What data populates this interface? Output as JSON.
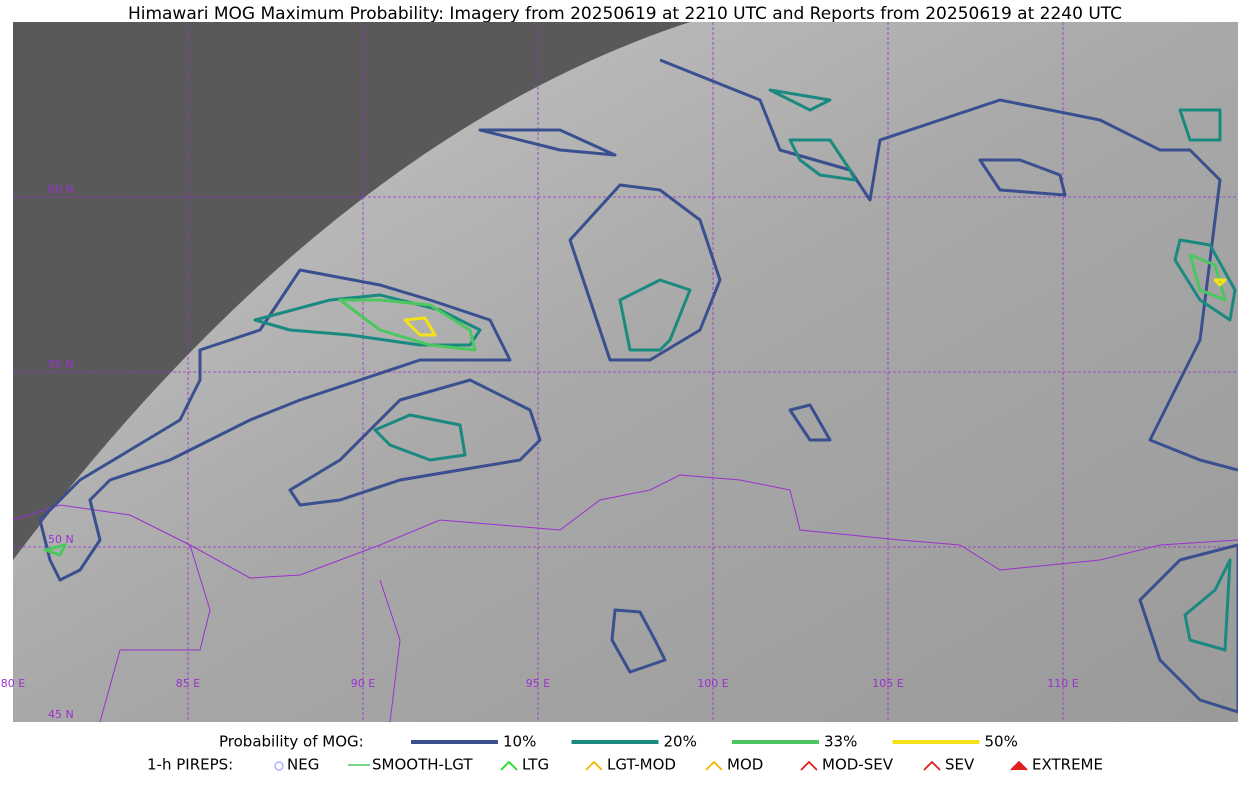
{
  "title": "Himawari MOG Maximum Probability: Imagery from 20250619 at 2210 UTC and Reports from 20250619 at 2240 UTC",
  "map": {
    "lat_labels": [
      "60 N",
      "55 N",
      "50 N",
      "45 N"
    ],
    "lon_labels": [
      "80 E",
      "85 E",
      "90 E",
      "95 E",
      "100 E",
      "105 E",
      "110 E"
    ]
  },
  "legend": {
    "probability": {
      "label": "Probability of MOG:",
      "items": [
        {
          "name": "10%",
          "color": "#3a4f8f"
        },
        {
          "name": "20%",
          "color": "#1a8a80"
        },
        {
          "name": "33%",
          "color": "#4cc760"
        },
        {
          "name": "50%",
          "color": "#f5e01a"
        }
      ]
    },
    "pireps": {
      "label": "1-h PIREPS:",
      "items": [
        "NEG",
        "SMOOTH-LGT",
        "LTG",
        "LGT-MOD",
        "MOD",
        "MOD-SEV",
        "SEV",
        "EXTREME"
      ]
    }
  }
}
